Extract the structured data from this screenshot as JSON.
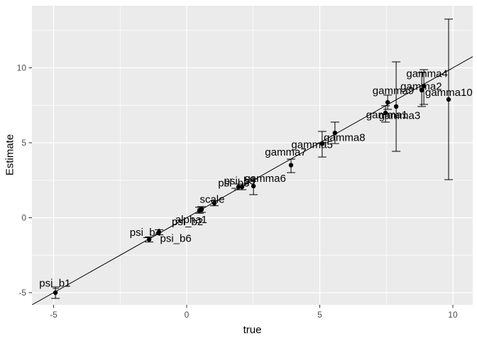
{
  "chart_data": {
    "type": "scatter",
    "xlabel": "true",
    "ylabel": "Estimate",
    "xlim": [
      -5.813,
      10.747
    ],
    "ylim": [
      -5.806,
      14.147
    ],
    "x_ticks": [
      -5,
      0,
      5,
      10
    ],
    "y_ticks": [
      -5,
      0,
      5,
      10
    ],
    "x_minor": [
      -2.5,
      2.5,
      7.5
    ],
    "y_minor": [
      -2.5,
      2.5,
      7.5,
      12.5
    ],
    "identity_line": true,
    "grid": true,
    "legend": "none",
    "colors": {
      "panel_bg": "#EBEBEB",
      "grid_major": "#FFFFFF",
      "grid_minor": "#FFFFFF",
      "point": "#000000",
      "error_bar": "#000000",
      "reference_line": "#000000",
      "tick_label": "#4D4D4D",
      "tick_mark": "#333333",
      "axis_title": "#000000",
      "label_text": "#000000"
    },
    "points": [
      {
        "name": "psi_b1",
        "true": -4.93,
        "estimate": -5.0,
        "lo": -5.38,
        "hi": -4.62,
        "label_x": -4.95,
        "label_y": -4.35
      },
      {
        "name": "psi_b4",
        "true": -1.41,
        "estimate": -1.45,
        "lo": -1.62,
        "hi": -1.28,
        "label_x": -1.55,
        "label_y": -0.97
      },
      {
        "name": "psi_b6",
        "true": -1.04,
        "estimate": -0.97,
        "lo": -1.14,
        "hi": -0.8,
        "label_x": -0.41,
        "label_y": -1.37
      },
      {
        "name": "psi_b2",
        "true": 0.48,
        "estimate": 0.5,
        "lo": 0.3,
        "hi": 0.7,
        "label_x": 0.03,
        "label_y": -0.26
      },
      {
        "name": "alpha1",
        "true": 0.56,
        "estimate": 0.55,
        "lo": 0.36,
        "hi": 0.74,
        "label_x": 0.17,
        "label_y": -0.12
      },
      {
        "name": "scale",
        "true": 1.04,
        "estimate": 0.97,
        "lo": 0.8,
        "hi": 1.14,
        "label_x": 0.96,
        "label_y": 1.23
      },
      {
        "name": "psi_b3",
        "true": 1.95,
        "estimate": 2.06,
        "lo": 1.87,
        "hi": 2.25,
        "label_x": 1.77,
        "label_y": 2.32
      },
      {
        "name": "psi_b5",
        "true": 2.08,
        "estimate": 2.06,
        "lo": 1.87,
        "hi": 2.25,
        "label_x": 1.99,
        "label_y": 2.46
      },
      {
        "name": "gamma6",
        "true": 2.51,
        "estimate": 2.11,
        "lo": 1.54,
        "hi": 2.58,
        "label_x": 2.95,
        "label_y": 2.63
      },
      {
        "name": "gamma7",
        "true": 3.92,
        "estimate": 3.51,
        "lo": 3.01,
        "hi": 3.91,
        "label_x": 3.72,
        "label_y": 4.38
      },
      {
        "name": "gamma5",
        "true": 5.09,
        "estimate": 4.95,
        "lo": 4.05,
        "hi": 5.76,
        "label_x": 4.71,
        "label_y": 4.88
      },
      {
        "name": "gamma8",
        "true": 5.57,
        "estimate": 5.66,
        "lo": 4.95,
        "hi": 6.38,
        "label_x": 5.93,
        "label_y": 5.36
      },
      {
        "name": "gamma9",
        "true": 7.55,
        "estimate": 7.7,
        "lo": 7.23,
        "hi": 8.18,
        "label_x": 7.76,
        "label_y": 8.48
      },
      {
        "name": "gamma1",
        "true": 7.47,
        "estimate": 6.99,
        "lo": 6.38,
        "hi": 7.47,
        "label_x": 7.52,
        "label_y": 6.87
      },
      {
        "name": "gamma3",
        "true": 7.87,
        "estimate": 7.42,
        "lo": 4.43,
        "hi": 10.4,
        "label_x": 8.0,
        "label_y": 6.83
      },
      {
        "name": "gamma2",
        "true": 8.83,
        "estimate": 8.51,
        "lo": 7.42,
        "hi": 9.69,
        "label_x": 8.81,
        "label_y": 8.77
      },
      {
        "name": "gamma4",
        "true": 8.91,
        "estimate": 8.79,
        "lo": 7.56,
        "hi": 9.88,
        "label_x": 9.03,
        "label_y": 9.62
      },
      {
        "name": "gamma10",
        "true": 9.84,
        "estimate": 7.89,
        "lo": 2.54,
        "hi": 13.25,
        "label_x": 9.85,
        "label_y": 8.37
      }
    ]
  }
}
